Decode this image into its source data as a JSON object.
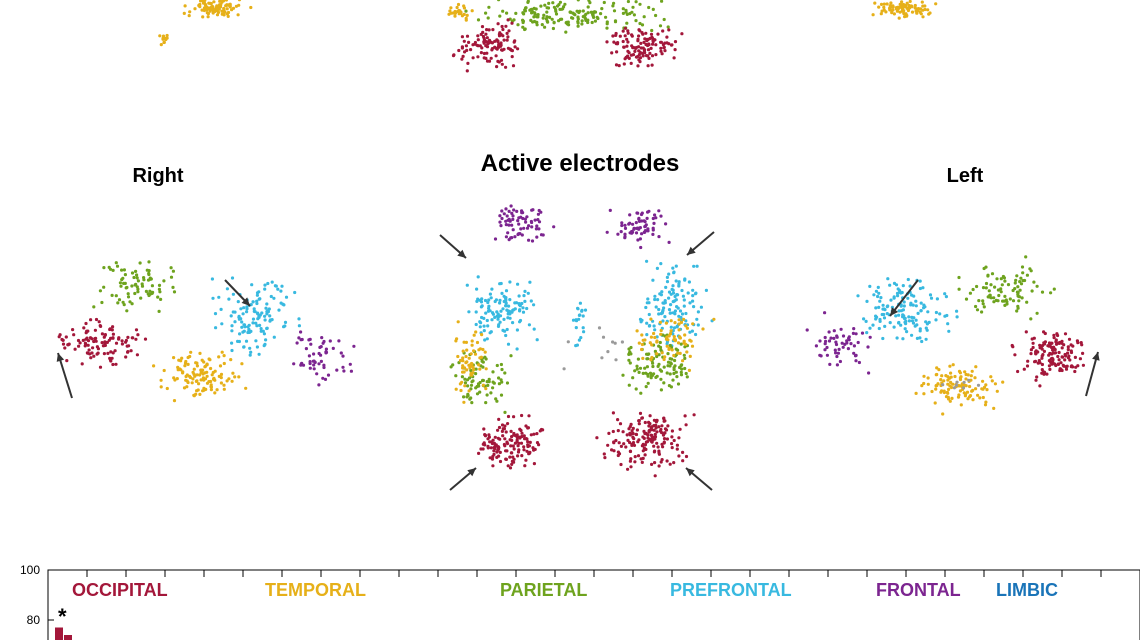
{
  "figure": {
    "title": "Active electrodes",
    "view_labels": {
      "right": "Right",
      "left": "Left"
    }
  },
  "regions": [
    {
      "name": "OCCIPITAL",
      "color": "#a3173a"
    },
    {
      "name": "TEMPORAL",
      "color": "#e6b019"
    },
    {
      "name": "PARIETAL",
      "color": "#6ea31e"
    },
    {
      "name": "PREFRONTAL",
      "color": "#38b9e0"
    },
    {
      "name": "FRONTAL",
      "color": "#7c2590"
    },
    {
      "name": "LIMBIC",
      "color": "#1a74b8"
    }
  ],
  "neutral_color": "#9a9a9a",
  "arrow_color": "#333333",
  "chart_data": {
    "type": "bar",
    "ylim": [
      0,
      100
    ],
    "yticks": [
      80,
      100
    ],
    "annotations": [
      "*"
    ],
    "series": [
      {
        "values": [
          77,
          74
        ]
      }
    ]
  }
}
